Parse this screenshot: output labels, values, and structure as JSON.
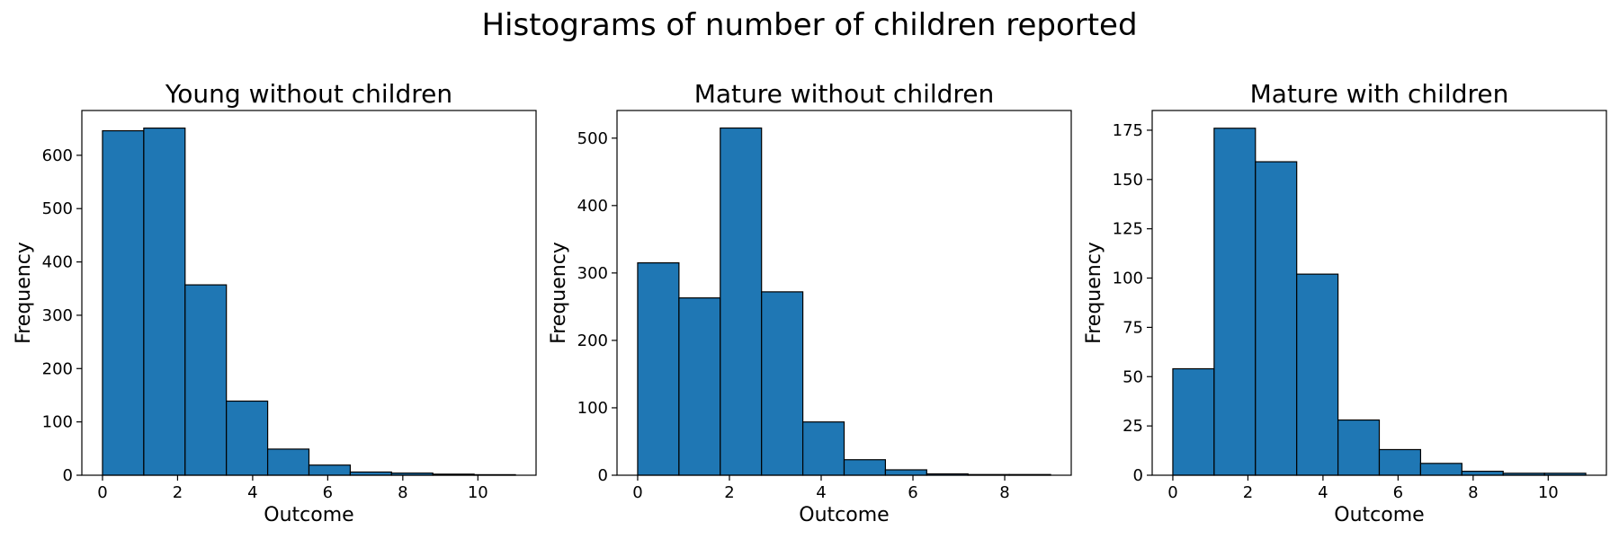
{
  "figure": {
    "suptitle": "Histograms of number of children reported"
  },
  "style": {
    "bar_color": "#1f77b4",
    "edge_color": "#000000"
  },
  "chart_data": [
    {
      "type": "bar",
      "title": "Young without children",
      "xlabel": "Outcome",
      "ylabel": "Frequency",
      "bin_edges": [
        0,
        1.1,
        2.2,
        3.3,
        4.4,
        5.5,
        6.6,
        7.7,
        8.8,
        9.9,
        11
      ],
      "values": [
        646,
        651,
        357,
        139,
        49,
        19,
        6,
        4,
        2,
        1
      ],
      "xlim": [
        -0.55,
        11.55
      ],
      "ylim": [
        0,
        684
      ],
      "xticks": [
        0,
        2,
        4,
        6,
        8,
        10
      ],
      "xtick_labels": [
        "0",
        "2",
        "4",
        "6",
        "8",
        "10"
      ],
      "yticks": [
        0,
        100,
        200,
        300,
        400,
        500,
        600
      ],
      "ytick_labels": [
        "0",
        "100",
        "200",
        "300",
        "400",
        "500",
        "600"
      ],
      "grid": false
    },
    {
      "type": "bar",
      "title": "Mature without children",
      "xlabel": "Outcome",
      "ylabel": "Frequency",
      "bin_edges": [
        0,
        0.9,
        1.8,
        2.7,
        3.6,
        4.5,
        5.4,
        6.3,
        7.2,
        8.1,
        9
      ],
      "values": [
        315,
        263,
        515,
        272,
        79,
        23,
        8,
        2,
        1,
        1
      ],
      "xlim": [
        -0.45,
        9.45
      ],
      "ylim": [
        0,
        541
      ],
      "xticks": [
        0,
        2,
        4,
        6,
        8
      ],
      "xtick_labels": [
        "0",
        "2",
        "4",
        "6",
        "8"
      ],
      "yticks": [
        0,
        100,
        200,
        300,
        400,
        500
      ],
      "ytick_labels": [
        "0",
        "100",
        "200",
        "300",
        "400",
        "500"
      ],
      "grid": false
    },
    {
      "type": "bar",
      "title": "Mature with children",
      "xlabel": "Outcome",
      "ylabel": "Frequency",
      "bin_edges": [
        0,
        1.1,
        2.2,
        3.3,
        4.4,
        5.5,
        6.6,
        7.7,
        8.8,
        9.9,
        11
      ],
      "values": [
        54,
        176,
        159,
        102,
        28,
        13,
        6,
        2,
        1,
        1
      ],
      "xlim": [
        -0.55,
        11.55
      ],
      "ylim": [
        0,
        185
      ],
      "xticks": [
        0,
        2,
        4,
        6,
        8,
        10
      ],
      "xtick_labels": [
        "0",
        "2",
        "4",
        "6",
        "8",
        "10"
      ],
      "yticks": [
        0,
        25,
        50,
        75,
        100,
        125,
        150,
        175
      ],
      "ytick_labels": [
        "0",
        "25",
        "50",
        "75",
        "100",
        "125",
        "150",
        "175"
      ],
      "grid": false
    }
  ]
}
